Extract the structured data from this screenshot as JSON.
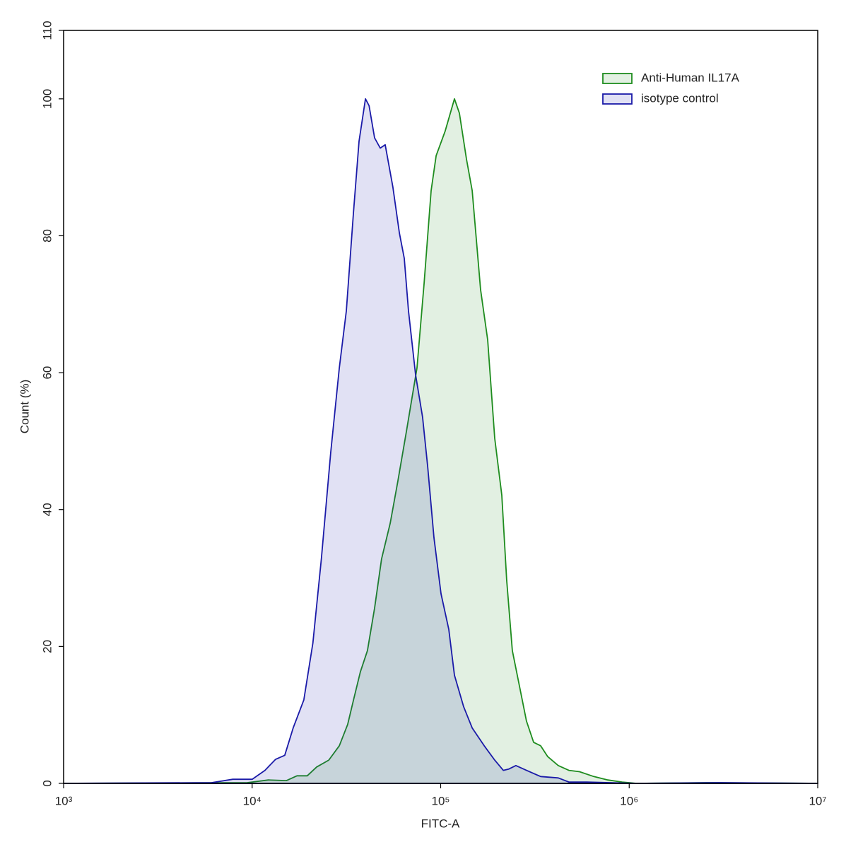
{
  "chart_data": {
    "type": "histogram-overlay",
    "xlabel": "FITC-A",
    "ylabel": "Count (%)",
    "xscale": "log",
    "xlim": [
      1000,
      10000000
    ],
    "ylim": [
      0,
      110
    ],
    "xticks": [
      {
        "value": 1000,
        "label": "10³"
      },
      {
        "value": 10000,
        "label": "10⁴"
      },
      {
        "value": 100000,
        "label": "10⁵"
      },
      {
        "value": 1000000,
        "label": "10⁶"
      },
      {
        "value": 10000000,
        "label": "10⁷"
      }
    ],
    "yticks": [
      0,
      20,
      40,
      60,
      80,
      100,
      110
    ],
    "legend": "upper right",
    "series": [
      {
        "name": "Anti-Human IL17A",
        "color": "#1e8c1e",
        "x": [
          1000,
          9440,
          12200,
          15200,
          17300,
          19600,
          22000,
          25500,
          29000,
          32100,
          34500,
          37500,
          40900,
          44600,
          48600,
          54000,
          59300,
          65800,
          74900,
          81700,
          89000,
          94600,
          105700,
          118300,
          125700,
          137000,
          146900,
          162900,
          177500,
          193600,
          211000,
          224000,
          239900,
          261800,
          285100,
          311200,
          338800,
          369800,
          420700,
          478600,
          545500,
          648600,
          770900,
          916200,
          1089000,
          2576000,
          10000000
        ],
        "values": [
          0,
          0.1,
          0.5,
          0.4,
          1.1,
          1.1,
          2.4,
          3.4,
          5.5,
          8.6,
          12.2,
          16.3,
          19.4,
          25.6,
          32.8,
          38,
          44.2,
          51.4,
          60.7,
          73.1,
          86.6,
          91.7,
          95.3,
          100,
          97.9,
          91.2,
          86.6,
          72.1,
          64.8,
          50.4,
          42.1,
          29.7,
          19.4,
          14.2,
          9.1,
          6,
          5.5,
          3.9,
          2.6,
          1.9,
          1.7,
          1,
          0.5,
          0.2,
          0,
          0.1,
          0
        ]
      },
      {
        "name": "isotype control",
        "color": "#1a1aa8",
        "x": [
          1000,
          6100,
          7900,
          10000,
          11700,
          13300,
          14900,
          16500,
          18800,
          21000,
          23300,
          26100,
          29000,
          31600,
          34500,
          36900,
          39900,
          41700,
          44600,
          47800,
          50800,
          55800,
          60400,
          64100,
          67500,
          73600,
          80200,
          85300,
          92100,
          100400,
          110400,
          118300,
          132400,
          146900,
          170200,
          193600,
          214800,
          230100,
          250600,
          285100,
          338800,
          420700,
          478600,
          594300,
          1089000,
          3063000,
          10000000
        ],
        "values": [
          0,
          0.1,
          0.6,
          0.6,
          1.9,
          3.5,
          4.1,
          8.1,
          12.2,
          20.5,
          32.8,
          48.3,
          60.7,
          69,
          83.5,
          93.8,
          100,
          99,
          94.3,
          92.8,
          93.3,
          87.1,
          80.4,
          76.7,
          69,
          59.7,
          53.5,
          46.3,
          35.9,
          27.7,
          22.5,
          15.8,
          11.2,
          8.1,
          5.5,
          3.4,
          1.9,
          2.1,
          2.6,
          1.9,
          1,
          0.8,
          0.2,
          0.2,
          0,
          0.1,
          0
        ]
      }
    ]
  }
}
